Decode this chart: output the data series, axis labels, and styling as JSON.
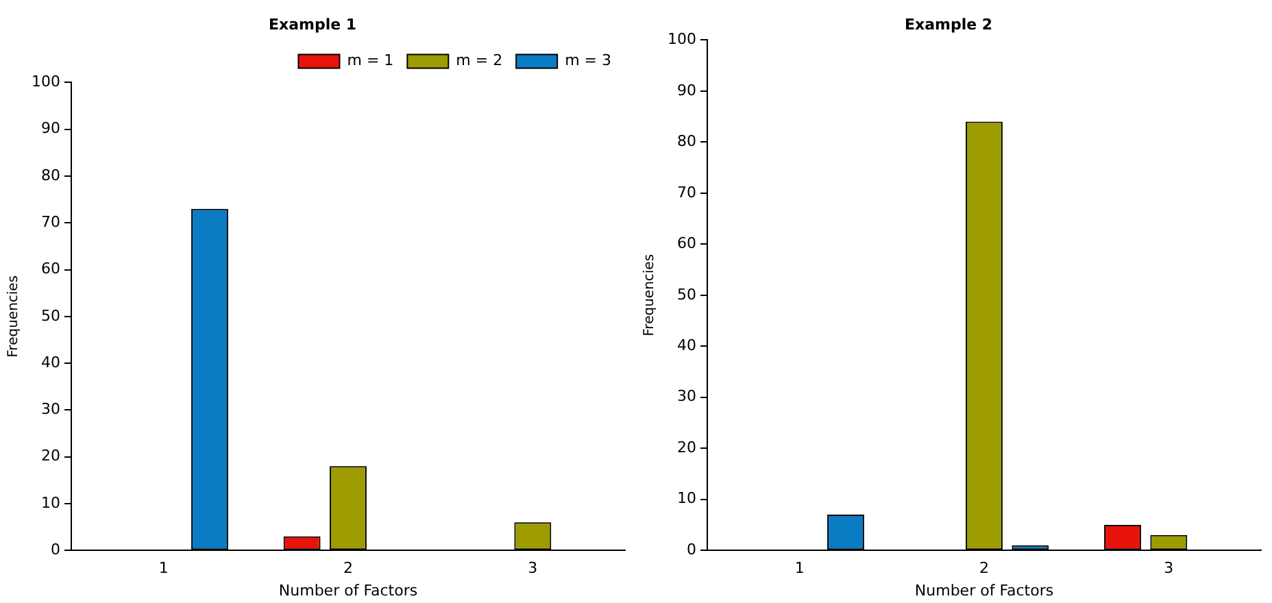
{
  "chart_data": [
    {
      "type": "bar",
      "title": "Example 1",
      "xlabel": "Number of Factors",
      "ylabel": "Frequencies",
      "categories": [
        "1",
        "2",
        "3"
      ],
      "series": [
        {
          "name": "m = 1",
          "color": "#e8140c",
          "values": [
            0,
            3,
            0
          ]
        },
        {
          "name": "m = 2",
          "color": "#9c9c00",
          "values": [
            0,
            18,
            6
          ]
        },
        {
          "name": "m = 3",
          "color": "#0a7cc4",
          "values": [
            73,
            0,
            0
          ]
        }
      ],
      "ylim": [
        0,
        100
      ],
      "yticks": [
        0,
        10,
        20,
        30,
        40,
        50,
        60,
        70,
        80,
        90,
        100
      ],
      "grid": false,
      "legend": "top right"
    },
    {
      "type": "bar",
      "title": "Example 2",
      "xlabel": "Number of Factors",
      "ylabel": "Frequencies",
      "categories": [
        "1",
        "2",
        "3"
      ],
      "series": [
        {
          "color": "#e8140c",
          "values": [
            0,
            0,
            5
          ]
        },
        {
          "color": "#9c9c00",
          "values": [
            0,
            84,
            3
          ]
        },
        {
          "color": "#0a7cc4",
          "values": [
            7,
            1,
            0
          ]
        }
      ],
      "ylim": [
        0,
        100
      ],
      "yticks": [
        0,
        10,
        20,
        30,
        40,
        50,
        60,
        70,
        80,
        90,
        100
      ],
      "grid": false,
      "legend": false
    }
  ]
}
